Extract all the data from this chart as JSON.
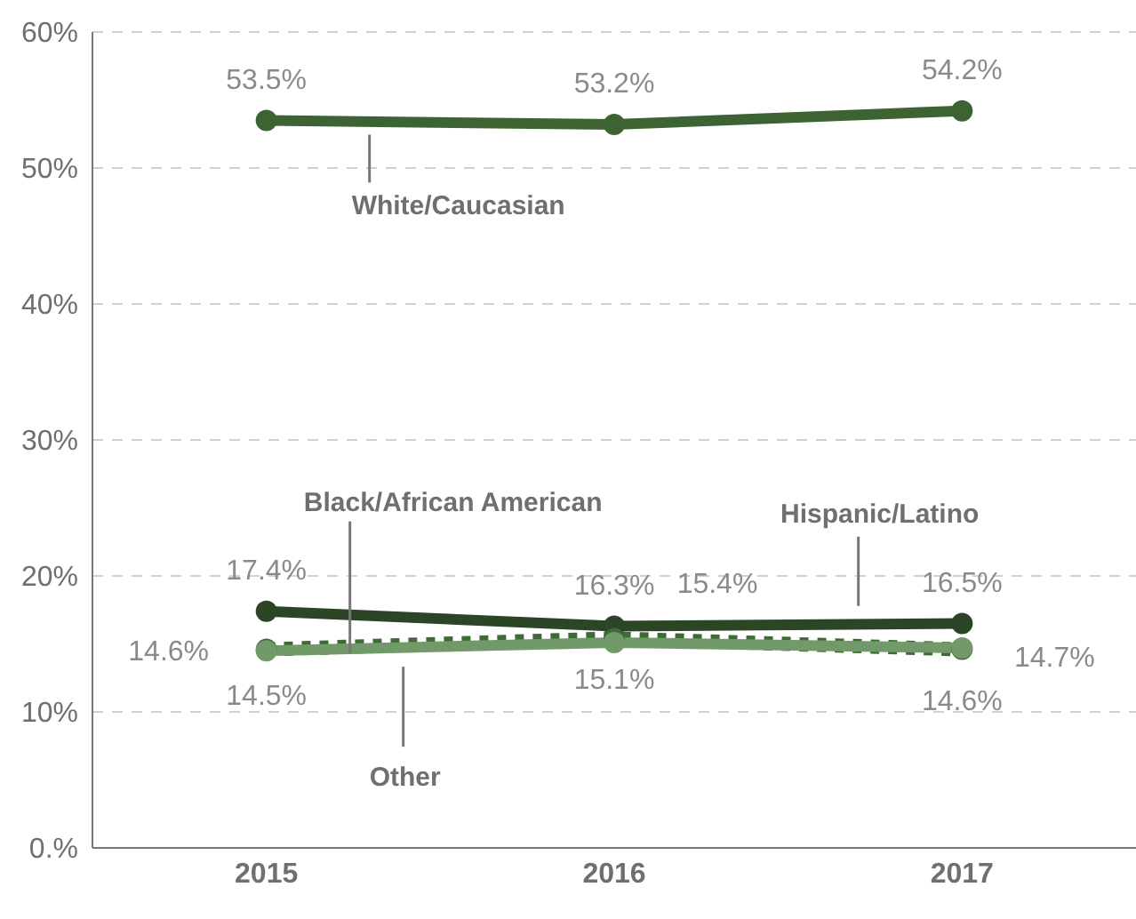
{
  "chart_data": {
    "type": "line",
    "categories": [
      "2015",
      "2016",
      "2017"
    ],
    "series": [
      {
        "name": "White/Caucasian",
        "color": "#3d6332",
        "values": [
          53.5,
          53.2,
          54.2
        ],
        "value_labels": [
          "53.5%",
          "53.2%",
          "54.2%"
        ]
      },
      {
        "name": "Hispanic/Latino",
        "color": "#2b4526",
        "values": [
          17.4,
          16.3,
          16.5
        ],
        "value_labels": [
          "17.4%",
          "16.3%",
          "16.5%"
        ]
      },
      {
        "name": "Black/African American",
        "color": "#3e6a34",
        "values": [
          14.6,
          15.4,
          14.6
        ],
        "value_labels": [
          "14.6%",
          "15.4%",
          "14.6%"
        ],
        "line_style": "dotted"
      },
      {
        "name": "Other",
        "color": "#72996a",
        "values": [
          14.5,
          15.1,
          14.7
        ],
        "value_labels": [
          "14.5%",
          "15.1%",
          "14.7%"
        ]
      }
    ],
    "ylim": [
      0,
      60
    ],
    "yticks": [
      {
        "value": 0,
        "label": "0.%"
      },
      {
        "value": 10,
        "label": "10%"
      },
      {
        "value": 20,
        "label": "20%"
      },
      {
        "value": 30,
        "label": "30%"
      },
      {
        "value": 40,
        "label": "40%"
      },
      {
        "value": 50,
        "label": "50%"
      },
      {
        "value": 60,
        "label": "60%"
      }
    ],
    "grid": "y",
    "legend": false,
    "marker": "circle",
    "line_style": "solid"
  }
}
